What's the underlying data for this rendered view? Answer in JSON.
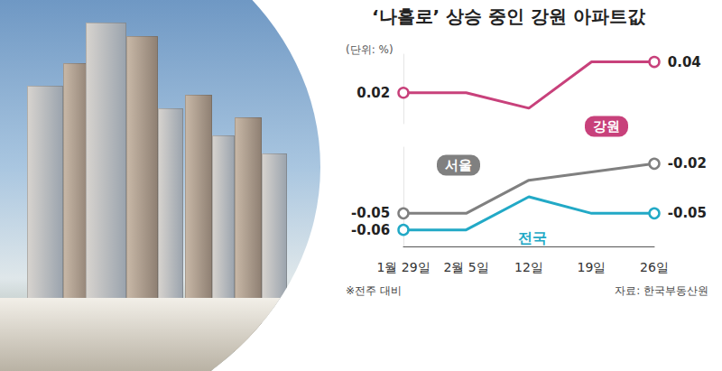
{
  "chart_data": [
    {
      "type": "line",
      "title": "‘나홀로’ 상승 중인 강원 아파트값",
      "subtitle": "(단위: %)",
      "categories": [
        "1월 29일",
        "2월 5일",
        "12일",
        "19일",
        "26일"
      ],
      "series": [
        {
          "name": "강원",
          "color": "#c8417b",
          "values": [
            0.02,
            0.02,
            0.01,
            0.04,
            0.04
          ],
          "value_labels": [
            "0.02",
            null,
            null,
            null,
            "0.04"
          ]
        }
      ],
      "ylim": [
        0,
        0.045
      ],
      "tick_labels": false,
      "data_labels": true,
      "grid": false
    },
    {
      "type": "line",
      "categories": [
        "1월 29일",
        "2월 5일",
        "12일",
        "19일",
        "26일"
      ],
      "series": [
        {
          "name": "서울",
          "color": "#808080",
          "values": [
            -0.05,
            -0.05,
            -0.03,
            -0.025,
            -0.02
          ],
          "value_labels": [
            "-0.05",
            null,
            null,
            null,
            "-0.02"
          ]
        },
        {
          "name": "전국",
          "color": "#22a9c6",
          "values": [
            -0.06,
            -0.06,
            -0.04,
            -0.05,
            -0.05
          ],
          "value_labels": [
            "-0.06",
            null,
            null,
            null,
            "-0.05"
          ]
        }
      ],
      "ylim": [
        -0.07,
        -0.01
      ],
      "tick_labels": "x",
      "data_labels": true,
      "grid": false,
      "annotations": [
        "※전주 대비",
        "자료: 한국부동산원"
      ]
    }
  ]
}
